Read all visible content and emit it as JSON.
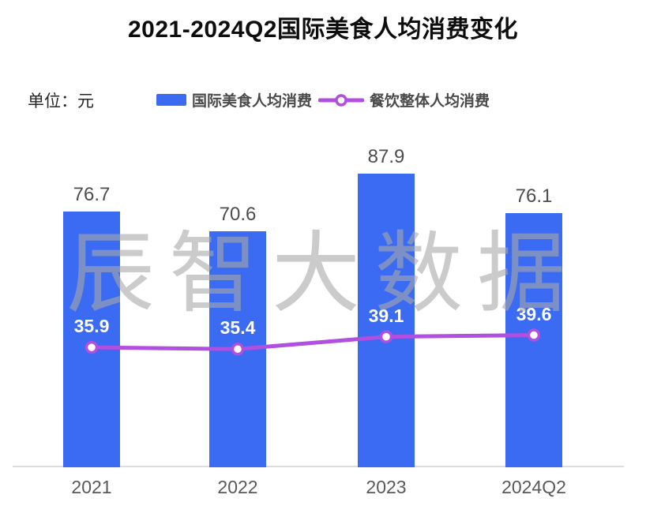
{
  "title": "2021-2024Q2国际美食人均消费变化",
  "unit_label": "单位：元",
  "watermark": "辰智大数据",
  "colors": {
    "bar": "#3A6BF2",
    "line": "#B04FE0",
    "point_fill": "#FFFFFF",
    "bar_value_label": "#4D4D4D",
    "point_value_label": "#FFFFFF",
    "title_text": "#0D0D0D",
    "legend_text": "#4A4A4A",
    "axis_line": "#DCDCDC",
    "watermark_text": "#A8A8A8"
  },
  "chart_data": {
    "type": "combo",
    "categories": [
      "2021",
      "2022",
      "2023",
      "2024Q2"
    ],
    "series": [
      {
        "name": "国际美食人均消费",
        "type": "bar",
        "values": [
          76.7,
          70.6,
          87.9,
          76.1
        ],
        "color": "#3A6BF2"
      },
      {
        "name": "餐饮整体人均消费",
        "type": "line",
        "values": [
          35.9,
          35.4,
          39.1,
          39.6
        ],
        "color": "#B04FE0"
      }
    ],
    "title": "2021-2024Q2国际美食人均消费变化",
    "xlabel": "",
    "ylabel": "元",
    "ylim": [
      0,
      95
    ],
    "grid": false,
    "legend_position": "top",
    "value_labels": true
  }
}
